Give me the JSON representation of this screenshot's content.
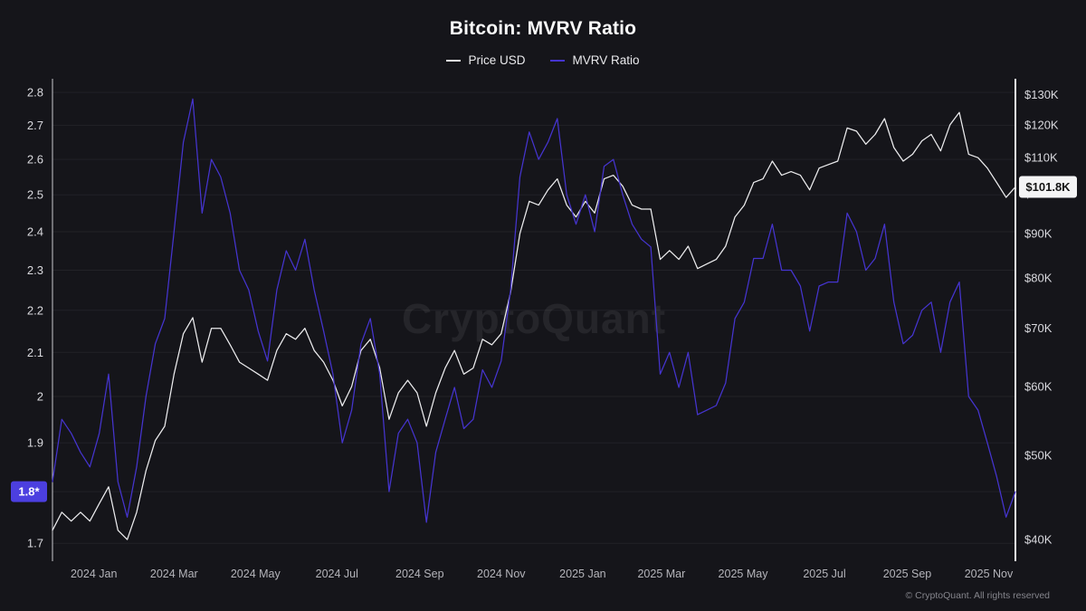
{
  "title": "Bitcoin: MVRV Ratio",
  "legend": [
    {
      "label": "Price USD",
      "color": "#ececee"
    },
    {
      "label": "MVRV Ratio",
      "color": "#4534cf"
    }
  ],
  "watermark": "CryptoQuant",
  "footer": "© CryptoQuant. All rights reserved",
  "badges": {
    "left": {
      "text": "1.8*",
      "value": 1.8,
      "bg": "#4c3fe0",
      "fg": "#ffffff"
    },
    "right": {
      "text": "$101.8K",
      "value": 101.8,
      "bg": "#f4f4f5",
      "fg": "#141414"
    }
  },
  "chart_data": {
    "type": "line",
    "title": "Bitcoin: MVRV Ratio",
    "x_unit": "days since 2023-12-01, weekly samples",
    "x_domain": [
      0,
      721
    ],
    "grid": "horizontal",
    "legend_position": "top-center",
    "x": [
      0,
      7,
      14,
      21,
      28,
      35,
      42,
      49,
      56,
      63,
      70,
      77,
      84,
      91,
      98,
      105,
      112,
      119,
      126,
      133,
      140,
      147,
      154,
      161,
      168,
      175,
      182,
      189,
      196,
      203,
      210,
      217,
      224,
      231,
      238,
      245,
      252,
      259,
      266,
      273,
      280,
      287,
      294,
      301,
      308,
      315,
      322,
      329,
      336,
      343,
      350,
      357,
      364,
      371,
      378,
      385,
      392,
      399,
      406,
      413,
      420,
      427,
      434,
      441,
      448,
      455,
      462,
      469,
      476,
      483,
      490,
      497,
      504,
      511,
      518,
      525,
      532,
      539,
      546,
      553,
      560,
      567,
      574,
      581,
      588,
      595,
      602,
      609,
      616,
      623,
      630,
      637,
      644,
      651,
      658,
      665,
      672,
      679,
      686,
      693,
      700,
      707,
      714,
      721
    ],
    "series": [
      {
        "name": "Price USD",
        "axis": "right",
        "unit": "USD thousands",
        "color": "#ececee",
        "values": [
          41,
          43,
          42,
          43,
          42,
          44,
          46,
          41,
          40,
          43,
          48,
          52,
          54,
          62,
          69,
          72,
          64,
          70,
          70,
          67,
          64,
          63,
          62,
          61,
          66,
          69,
          68,
          70,
          66,
          64,
          61,
          57,
          60,
          66,
          68,
          63,
          55,
          59,
          61,
          59,
          54,
          59,
          63,
          66,
          62,
          63,
          68,
          67,
          69,
          77,
          90,
          98,
          97,
          101,
          104,
          97,
          94,
          98,
          95,
          104,
          105,
          102,
          97,
          96,
          96,
          84,
          86,
          84,
          87,
          82,
          83,
          84,
          87,
          94,
          97,
          103,
          104,
          109,
          105,
          106,
          105,
          101,
          107,
          108,
          109,
          119,
          118,
          114,
          117,
          122,
          113,
          109,
          111,
          115,
          117,
          112,
          120,
          124,
          111,
          110,
          107,
          103,
          99,
          101.8
        ]
      },
      {
        "name": "MVRV Ratio",
        "axis": "left",
        "color": "#4534cf",
        "values": [
          1.82,
          1.95,
          1.92,
          1.88,
          1.85,
          1.92,
          2.05,
          1.82,
          1.75,
          1.85,
          2.0,
          2.12,
          2.18,
          2.4,
          2.65,
          2.78,
          2.45,
          2.6,
          2.55,
          2.45,
          2.3,
          2.25,
          2.15,
          2.08,
          2.25,
          2.35,
          2.3,
          2.38,
          2.25,
          2.15,
          2.05,
          1.9,
          1.97,
          2.12,
          2.18,
          2.05,
          1.8,
          1.92,
          1.95,
          1.9,
          1.74,
          1.88,
          1.95,
          2.02,
          1.93,
          1.95,
          2.06,
          2.02,
          2.08,
          2.25,
          2.55,
          2.68,
          2.6,
          2.65,
          2.72,
          2.5,
          2.42,
          2.5,
          2.4,
          2.58,
          2.6,
          2.5,
          2.42,
          2.38,
          2.36,
          2.05,
          2.1,
          2.02,
          2.1,
          1.96,
          1.97,
          1.98,
          2.03,
          2.18,
          2.22,
          2.33,
          2.33,
          2.42,
          2.3,
          2.3,
          2.26,
          2.15,
          2.26,
          2.27,
          2.27,
          2.45,
          2.4,
          2.3,
          2.33,
          2.42,
          2.22,
          2.12,
          2.14,
          2.2,
          2.22,
          2.1,
          2.22,
          2.27,
          2.0,
          1.97,
          1.9,
          1.83,
          1.75,
          1.8
        ]
      }
    ],
    "left_axis": {
      "scale": "log",
      "min": 1.68,
      "max": 2.82,
      "tick_values": [
        2.8,
        2.7,
        2.6,
        2.5,
        2.4,
        2.3,
        2.2,
        2.1,
        2.0,
        1.9,
        1.8,
        1.7
      ],
      "tick_labels": [
        "2.8",
        "2.7",
        "2.6",
        "2.5",
        "2.4",
        "2.3",
        "2.2",
        "2.1",
        "2",
        "1.9",
        "1.8",
        "1.7"
      ]
    },
    "right_axis": {
      "scale": "log",
      "min": 38.5,
      "max": 133,
      "tick_values": [
        130,
        120,
        110,
        100,
        90,
        80,
        70,
        60,
        50,
        40
      ],
      "tick_labels": [
        "$130K",
        "$120K",
        "$110K",
        "$100K",
        "$90K",
        "$80K",
        "$70K",
        "$60K",
        "$50K",
        "$40K"
      ]
    },
    "x_ticks": [
      {
        "label": "2024 Jan",
        "day": 31
      },
      {
        "label": "2024 Mar",
        "day": 91
      },
      {
        "label": "2024 May",
        "day": 152
      },
      {
        "label": "2024 Jul",
        "day": 213
      },
      {
        "label": "2024 Sep",
        "day": 275
      },
      {
        "label": "2024 Nov",
        "day": 336
      },
      {
        "label": "2025 Jan",
        "day": 397
      },
      {
        "label": "2025 Mar",
        "day": 456
      },
      {
        "label": "2025 May",
        "day": 517
      },
      {
        "label": "2025 Jul",
        "day": 578
      },
      {
        "label": "2025 Sep",
        "day": 640
      },
      {
        "label": "2025 Nov",
        "day": 701
      }
    ]
  }
}
